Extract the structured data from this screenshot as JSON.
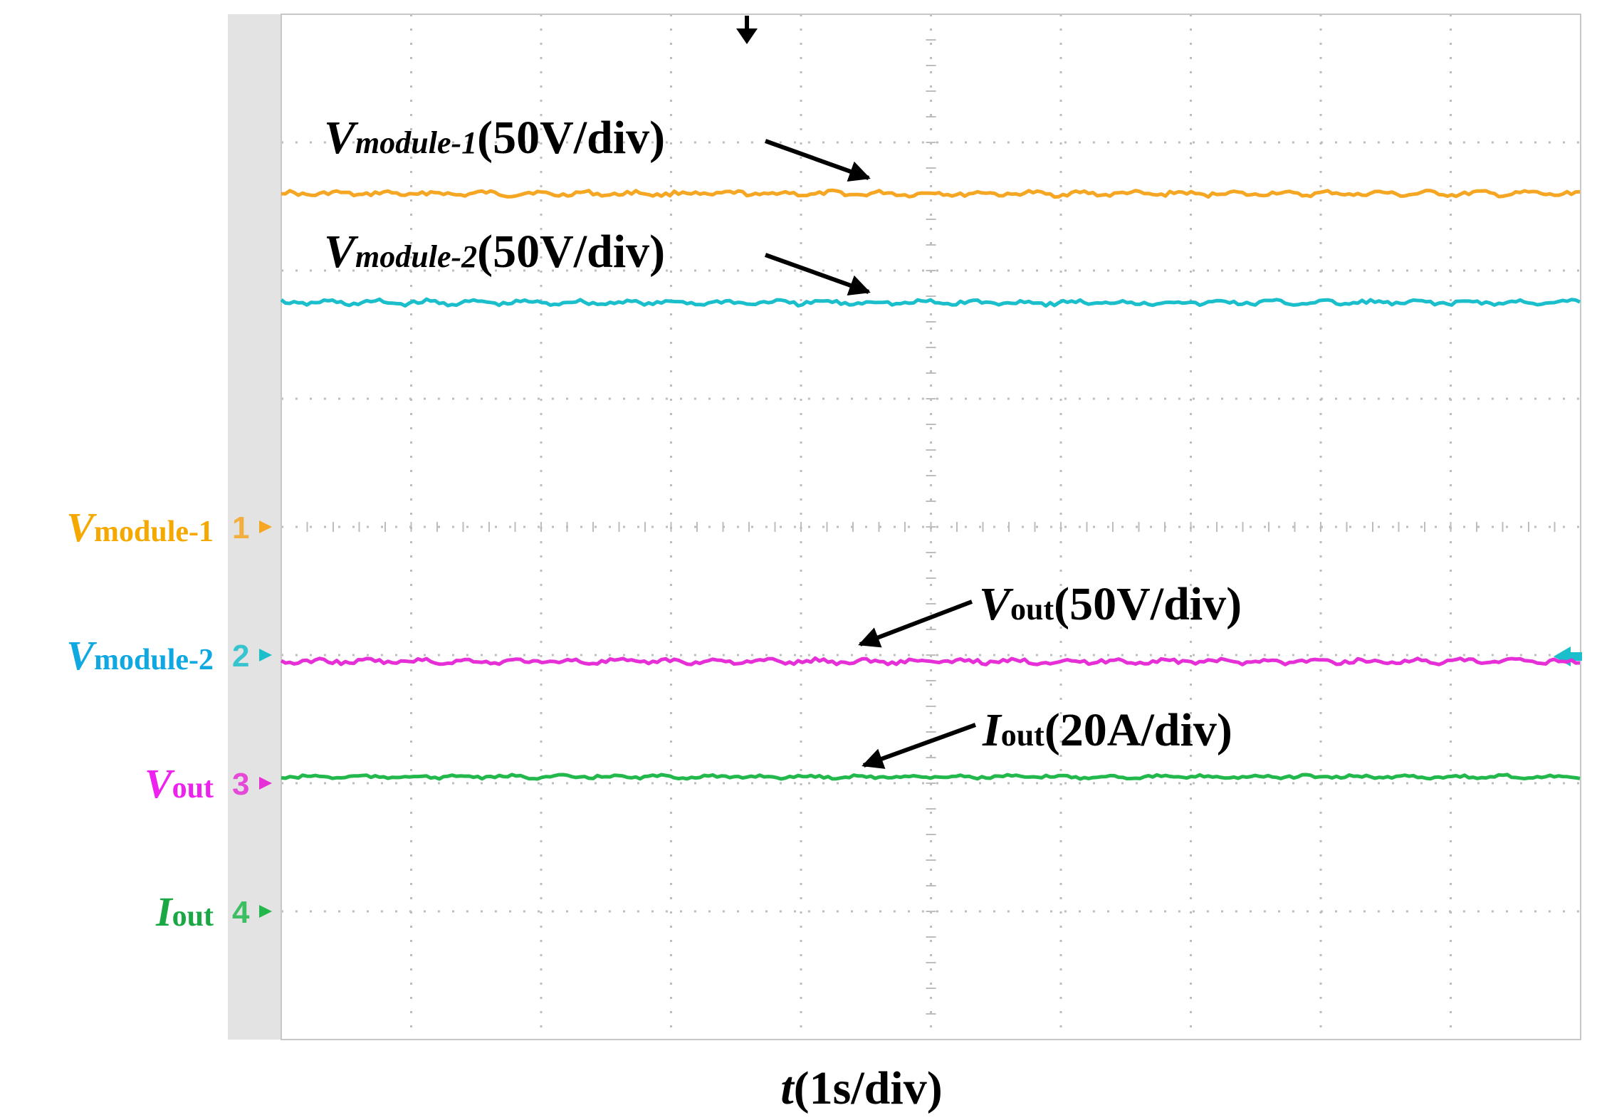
{
  "colors": {
    "ch1": "#F5A623",
    "ch2": "#1BBFCB",
    "ch3": "#E62FD6",
    "ch4": "#22B84C",
    "ch1_label": "#F5A900",
    "ch2_label": "#10A8E0",
    "ch3_label": "#EE22EE",
    "ch4_label": "#19A844",
    "grid": "#bdbdbd",
    "left_strip": "#e3e3e3",
    "annotation": "#000000"
  },
  "chart_data": {
    "type": "line",
    "title": "",
    "xlabel": {
      "symbol": "t",
      "unit": "(1s/div)"
    },
    "x_divisions": 10,
    "y_divisions": 8,
    "grid": "dotted",
    "series": [
      {
        "id": "ch1",
        "channel": "1",
        "name_main": "V",
        "name_sub": "module-1",
        "scale_label": "(50V/div)",
        "ground_div": 4.0,
        "level_div": 6.6,
        "noise_div": 0.03
      },
      {
        "id": "ch2",
        "channel": "2",
        "name_main": "V",
        "name_sub": "module-2",
        "scale_label": "(50V/div)",
        "ground_div": 3.0,
        "level_div": 5.75,
        "noise_div": 0.03
      },
      {
        "id": "ch3",
        "channel": "3",
        "name_main": "V",
        "name_sub": "out",
        "scale_label": "(50V/div)",
        "ground_div": 2.0,
        "level_div": 2.95,
        "noise_div": 0.03
      },
      {
        "id": "ch4",
        "channel": "4",
        "name_main": "I",
        "name_sub": "out",
        "scale_label": "(20A/div)",
        "ground_div": 1.0,
        "level_div": 2.05,
        "noise_div": 0.02
      }
    ]
  }
}
